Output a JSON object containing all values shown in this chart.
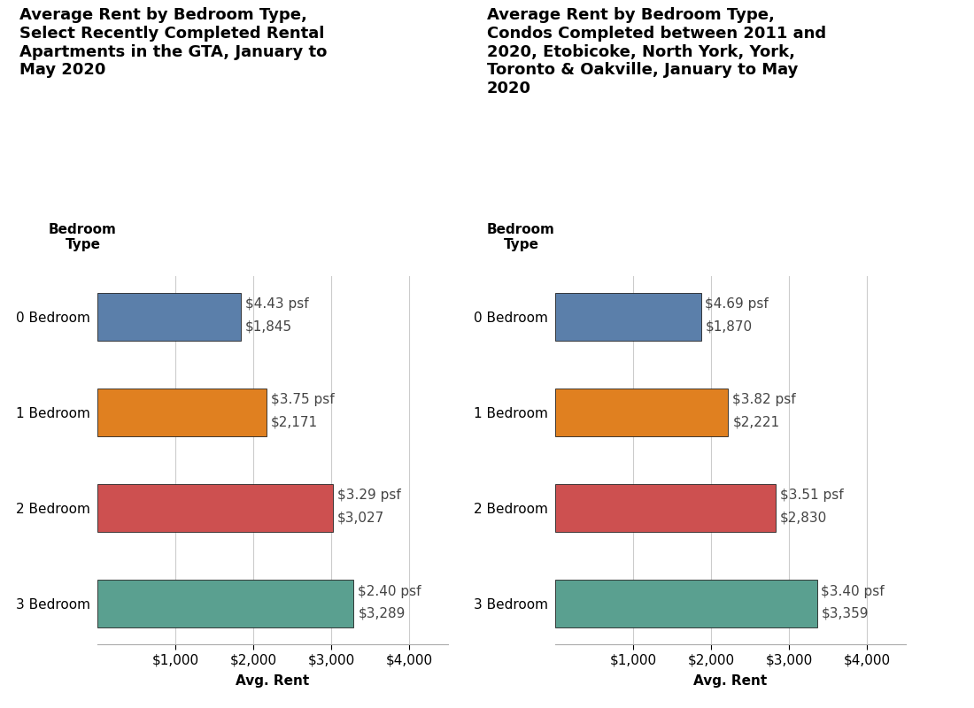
{
  "chart1": {
    "title": "Average Rent by Bedroom Type,\nSelect Recently Completed Rental\nApartments in the GTA, January to\nMay 2020",
    "categories": [
      "0 Bedroom",
      "1 Bedroom",
      "2 Bedroom",
      "3 Bedroom"
    ],
    "values": [
      1845,
      2171,
      3027,
      3289
    ],
    "psf": [
      "$4.43 psf",
      "$3.75 psf",
      "$3.29 psf",
      "$2.40 psf"
    ],
    "labels": [
      "$1,845",
      "$2,171",
      "$3,027",
      "$3,289"
    ],
    "xlabel": "Avg. Rent",
    "xlim": [
      0,
      4500
    ],
    "xticks": [
      1000,
      2000,
      3000,
      4000
    ],
    "xtick_labels": [
      "$1,000",
      "$2,000",
      "$3,000",
      "$4,000"
    ]
  },
  "chart2": {
    "title": "Average Rent by Bedroom Type,\nCondos Completed between 2011 and\n2020, Etobicoke, North York, York,\nToronto & Oakville, January to May\n2020",
    "categories": [
      "0 Bedroom",
      "1 Bedroom",
      "2 Bedroom",
      "3 Bedroom"
    ],
    "values": [
      1870,
      2221,
      2830,
      3359
    ],
    "psf": [
      "$4.69 psf",
      "$3.82 psf",
      "$3.51 psf",
      "$3.40 psf"
    ],
    "labels": [
      "$1,870",
      "$2,221",
      "$2,830",
      "$3,359"
    ],
    "xlabel": "Avg. Rent",
    "xlim": [
      0,
      4500
    ],
    "xticks": [
      1000,
      2000,
      3000,
      4000
    ],
    "xtick_labels": [
      "$1,000",
      "$2,000",
      "$3,000",
      "$4,000"
    ]
  },
  "bar_colors": [
    "#5b7faa",
    "#e08020",
    "#cd5050",
    "#5aa090"
  ],
  "legend_labels": [
    "0 Bedroom",
    "1 Bedroom",
    "2 Bedroom",
    "3 Bedroom"
  ],
  "legend_title": "Bedroom Type",
  "background_color": "#ffffff",
  "bar_height": 0.5,
  "label_fontsize": 11,
  "title_fontsize": 13,
  "axis_label_fontsize": 11,
  "tick_fontsize": 11,
  "annotation_fontsize": 11,
  "ylabel_text": "Bedroom\nType"
}
